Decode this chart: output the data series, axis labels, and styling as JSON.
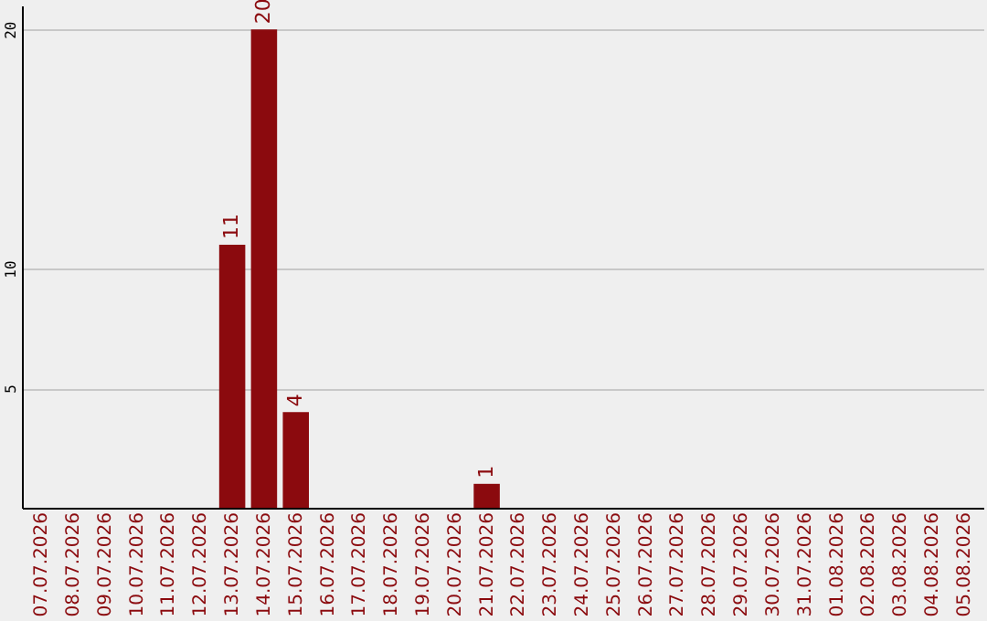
{
  "chart_data": {
    "type": "bar",
    "categories": [
      "07.07.2026",
      "08.07.2026",
      "09.07.2026",
      "10.07.2026",
      "11.07.2026",
      "12.07.2026",
      "13.07.2026",
      "14.07.2026",
      "15.07.2026",
      "16.07.2026",
      "17.07.2026",
      "18.07.2026",
      "19.07.2026",
      "20.07.2026",
      "21.07.2026",
      "22.07.2026",
      "23.07.2026",
      "24.07.2026",
      "25.07.2026",
      "26.07.2026",
      "27.07.2026",
      "28.07.2026",
      "29.07.2026",
      "30.07.2026",
      "31.07.2026",
      "01.08.2026",
      "02.08.2026",
      "03.08.2026",
      "04.08.2026",
      "05.08.2026"
    ],
    "values": [
      null,
      null,
      null,
      null,
      null,
      null,
      11,
      20,
      4,
      null,
      null,
      null,
      null,
      null,
      1,
      null,
      null,
      null,
      null,
      null,
      null,
      null,
      null,
      null,
      null,
      null,
      null,
      null,
      null,
      null
    ],
    "color": "#8b0a0e",
    "ylim": [
      0,
      21
    ],
    "yticks": [
      5,
      10,
      20
    ],
    "grid": "y",
    "data_labels": true
  }
}
